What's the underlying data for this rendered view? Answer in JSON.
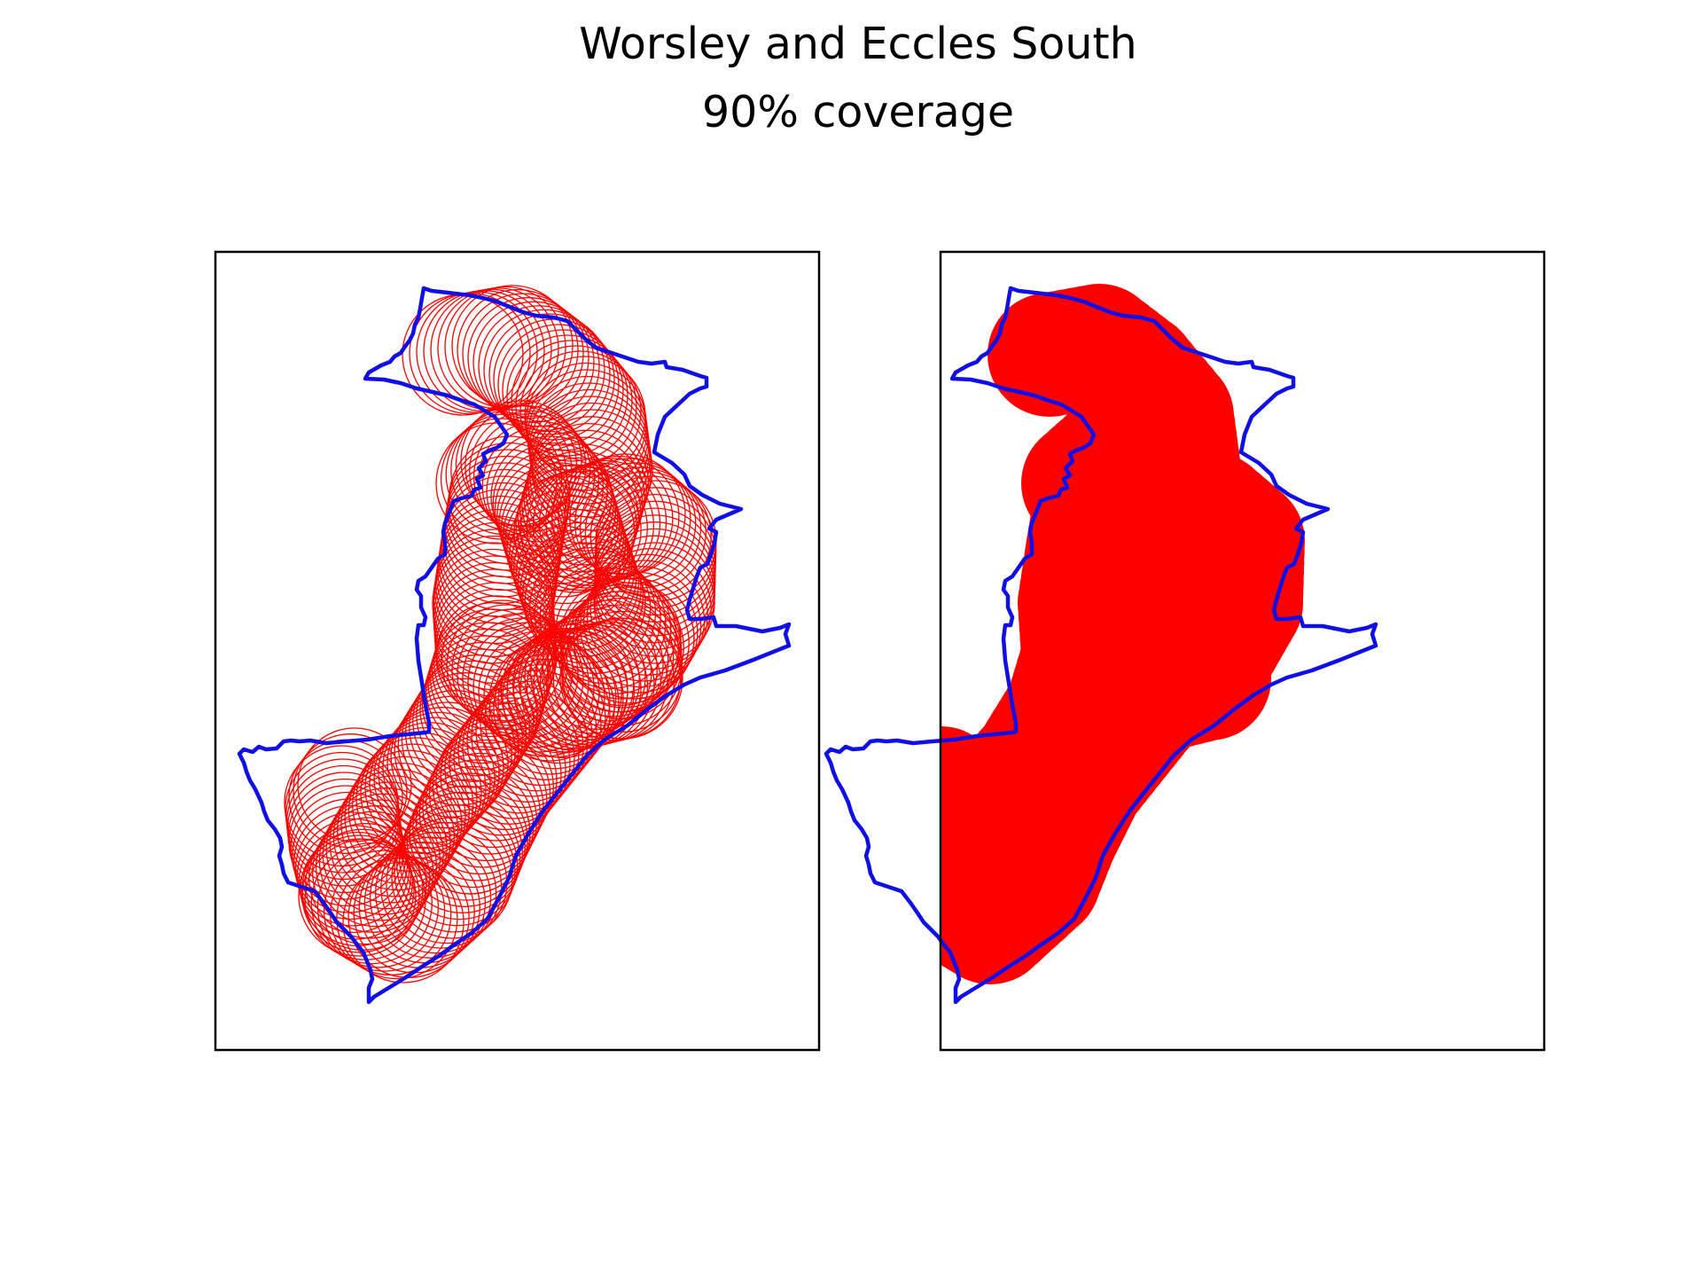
{
  "figure": {
    "title": "Worsley and Eccles South",
    "subtitle": "90% coverage"
  },
  "colors": {
    "boundary": "#1010e6",
    "coverage": "#ff0000",
    "frame": "#000000",
    "background": "#ffffff"
  },
  "panels": [
    {
      "id": "outline",
      "style": "ring outlines"
    },
    {
      "id": "filled",
      "style": "solid fill"
    }
  ]
}
